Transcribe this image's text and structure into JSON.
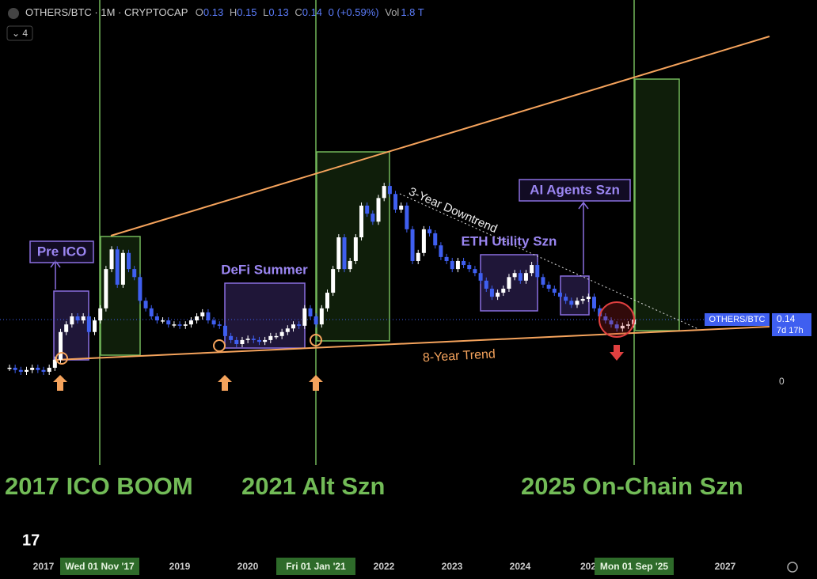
{
  "header": {
    "symbol": "OTHERS/BTC · 1M · CRYPTOCAP",
    "ohlc": [
      {
        "label": "O",
        "value": 0.13
      },
      {
        "label": "H",
        "value": 0.15
      },
      {
        "label": "L",
        "value": 0.13
      },
      {
        "label": "C",
        "value": 0.14
      }
    ],
    "change": "0 (+0.59%)",
    "volume_label": "Vol",
    "volume": "1.8 T",
    "indicator_count": 4
  },
  "chart_data": {
    "type": "candlestick",
    "up_color": "#ffffff",
    "down_color": "#3f5ff0",
    "closes": [
      0.032,
      0.027,
      0.023,
      0.027,
      0.032,
      0.027,
      0.023,
      0.032,
      0.05,
      0.112,
      0.129,
      0.147,
      0.138,
      0.147,
      0.112,
      0.138,
      0.165,
      0.253,
      0.297,
      0.218,
      0.289,
      0.253,
      0.235,
      0.182,
      0.165,
      0.147,
      0.138,
      0.138,
      0.129,
      0.129,
      0.126,
      0.129,
      0.138,
      0.147,
      0.156,
      0.138,
      0.129,
      0.126,
      0.103,
      0.094,
      0.085,
      0.094,
      0.097,
      0.094,
      0.09,
      0.094,
      0.103,
      0.103,
      0.112,
      0.12,
      0.129,
      0.126,
      0.165,
      0.147,
      0.129,
      0.165,
      0.2,
      0.253,
      0.324,
      0.253,
      0.271,
      0.324,
      0.395,
      0.377,
      0.359,
      0.412,
      0.439,
      0.421,
      0.386,
      0.395,
      0.342,
      0.271,
      0.289,
      0.342,
      0.333,
      0.306,
      0.28,
      0.271,
      0.253,
      0.271,
      0.262,
      0.253,
      0.244,
      0.227,
      0.209,
      0.191,
      0.2,
      0.209,
      0.235,
      0.244,
      0.227,
      0.244,
      0.262,
      0.235,
      0.218,
      0.209,
      0.2,
      0.191,
      0.182,
      0.173,
      0.182,
      0.186,
      0.191,
      0.165,
      0.147,
      0.138,
      0.129,
      0.12,
      0.126,
      0.129,
      0.14
    ],
    "ylim": [
      0,
      0.85
    ],
    "yticks": [
      0
    ],
    "xaxis_labels": [
      "2017",
      "Wed 01 Nov '17",
      "2019",
      "2020",
      "Fri 01 Jan '21",
      "2022",
      "2023",
      "2024",
      "202",
      "Mon 01 Sep '25",
      "2027"
    ],
    "price_tag": {
      "name": "OTHERS/BTC",
      "value": 0.14,
      "countdown": "7d 17h"
    },
    "annotations": {
      "pre_ico": "Pre ICO",
      "defi": "DeFi Summer",
      "eth": "ETH Utility Szn",
      "ai": "AI Agents Szn",
      "downtrend": "3-Year Downtrend",
      "trend": "8-Year Trend",
      "boom_2017": "2017 ICO BOOM",
      "alt_2021": "2021 Alt Szn",
      "onchain_2025": "2025 On-Chain Szn"
    }
  }
}
